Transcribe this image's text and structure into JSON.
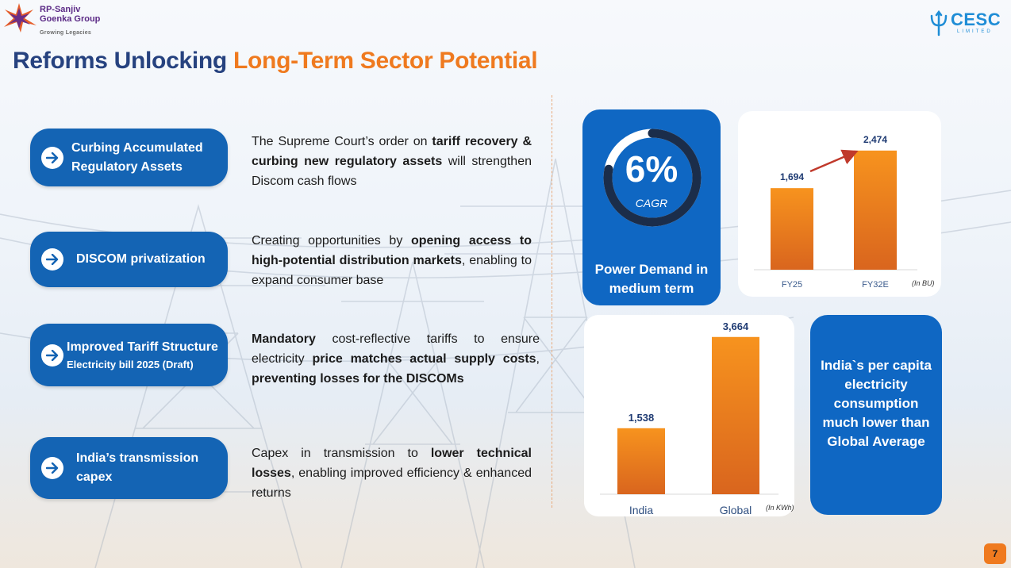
{
  "header": {
    "group_name": "RP-Sanjiv Goenka Group",
    "group_tagline": "Growing Legacies",
    "company": "CESC",
    "company_suffix": "LIMITED"
  },
  "title": {
    "part1": "Reforms Unlocking",
    "part2": "Long-Term Sector Potential"
  },
  "reforms": [
    {
      "label": "Curbing Accumulated Regulatory Assets",
      "sublabel": "",
      "description": [
        {
          "text": "The Supreme Court’s order on ",
          "bold": false
        },
        {
          "text": "tariff recovery & curbing new regulatory assets",
          "bold": true
        },
        {
          "text": " will strengthen Discom cash flows",
          "bold": false
        }
      ]
    },
    {
      "label": "DISCOM privatization",
      "sublabel": "",
      "description": [
        {
          "text": "Creating opportunities by ",
          "bold": false
        },
        {
          "text": "opening access to high-potential distribution markets",
          "bold": true
        },
        {
          "text": ", enabling to expand consumer base",
          "bold": false
        }
      ]
    },
    {
      "label": "Improved Tariff Structure",
      "sublabel": "Electricity bill 2025 (Draft)",
      "description": [
        {
          "text": "Mandatory",
          "bold": true
        },
        {
          "text": " cost-reflective tariffs to ensure electricity ",
          "bold": false
        },
        {
          "text": "price matches actual supply costs",
          "bold": true
        },
        {
          "text": ", ",
          "bold": false
        },
        {
          "text": "preventing losses for the DISCOMs",
          "bold": true
        }
      ]
    },
    {
      "label": "India’s transmission capex",
      "sublabel": "",
      "description": [
        {
          "text": "Capex in transmission to ",
          "bold": false
        },
        {
          "text": "lower technical losses",
          "bold": true
        },
        {
          "text": ", enabling improved efficiency & enhanced returns",
          "bold": false
        }
      ]
    }
  ],
  "power_demand": {
    "cagr_value": "6%",
    "cagr_label": "CAGR",
    "cagr_fraction": 0.78,
    "label": "Power Demand in medium term"
  },
  "per_capita_note": "India`s per capita electricity consumption much lower than Global Average",
  "page_number": "7",
  "colors": {
    "navy": "#26427f",
    "orange": "#ef7a1f",
    "blue": "#1464b4",
    "bar_top": "#f7931e",
    "bar_bottom": "#d9651e",
    "value_label": "#1f3b73",
    "growth_arrow": "#c0392b"
  },
  "chart_data": [
    {
      "type": "bar",
      "categories": [
        "FY25",
        "FY32E"
      ],
      "values": [
        1694,
        2474
      ],
      "value_labels": [
        "1,694",
        "2,474"
      ],
      "unit_note": "(In BU)",
      "ylim": [
        0,
        2800
      ],
      "annotation": "growth-arrow FY25 to FY32E"
    },
    {
      "type": "bar",
      "categories": [
        "India",
        "Global"
      ],
      "values": [
        1538,
        3664
      ],
      "value_labels": [
        "1,538",
        "3,664"
      ],
      "unit_note": "(In KWh)",
      "ylim": [
        0,
        3900
      ]
    }
  ]
}
